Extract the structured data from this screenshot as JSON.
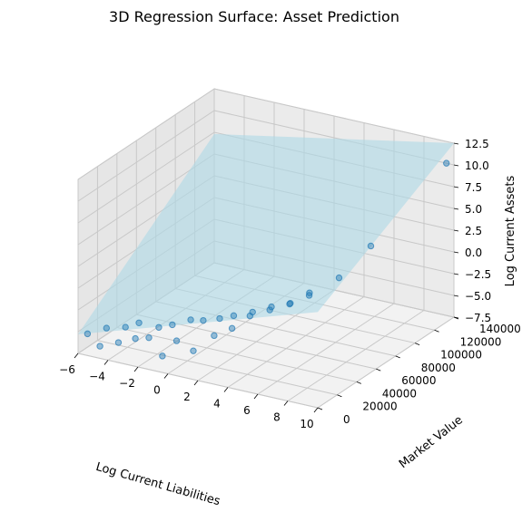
{
  "chart_data": {
    "type": "scatter",
    "title": "3D Regression Surface: Asset Prediction",
    "xlabel": "Log Current Liabilities",
    "ylabel": "Market Value",
    "zlabel": "Log Current Assets",
    "xlim": [
      -6,
      10
    ],
    "ylim": [
      0,
      140000
    ],
    "zlim": [
      -7.5,
      12.5
    ],
    "xticks": [
      "−6",
      "−4",
      "−2",
      "0",
      "2",
      "4",
      "6",
      "8",
      "10"
    ],
    "yticks": [
      "0",
      "20000",
      "40000",
      "60000",
      "80000",
      "100000",
      "120000",
      "140000"
    ],
    "zticks": [
      "−7.5",
      "−5.0",
      "−2.5",
      "0.0",
      "2.5",
      "5.0",
      "7.5",
      "10.0",
      "12.5"
    ],
    "grid": true,
    "surface": {
      "type": "plane",
      "description_equation": "z ≈ -2.0 + 0.55·x + 0.00009·y",
      "color": "#add8e6"
    },
    "points_color": "#1f77b4",
    "points": [
      {
        "x": -5.5,
        "y": 2000,
        "z": -5.2
      },
      {
        "x": -4.8,
        "y": 4000,
        "z": -6.5
      },
      {
        "x": -4.2,
        "y": 1500,
        "z": -4.0
      },
      {
        "x": -3.5,
        "y": 3000,
        "z": -5.5
      },
      {
        "x": -3.0,
        "y": 2500,
        "z": -3.5
      },
      {
        "x": -2.5,
        "y": 5000,
        "z": -4.8
      },
      {
        "x": -2.0,
        "y": 1000,
        "z": -2.5
      },
      {
        "x": -1.5,
        "y": 3500,
        "z": -4.2
      },
      {
        "x": -1.0,
        "y": 6000,
        "z": -3.0
      },
      {
        "x": -0.5,
        "y": 2000,
        "z": -5.8
      },
      {
        "x": 0.0,
        "y": 4500,
        "z": -2.2
      },
      {
        "x": 0.5,
        "y": 1200,
        "z": -3.6
      },
      {
        "x": 1.0,
        "y": 8000,
        "z": -1.5
      },
      {
        "x": 1.5,
        "y": 3000,
        "z": -4.5
      },
      {
        "x": 2.0,
        "y": 5500,
        "z": -1.0
      },
      {
        "x": 2.5,
        "y": 9000,
        "z": -2.8
      },
      {
        "x": 3.0,
        "y": 7000,
        "z": -0.5
      },
      {
        "x": 3.5,
        "y": 12000,
        "z": -1.8
      },
      {
        "x": 4.0,
        "y": 6000,
        "z": 0.3
      },
      {
        "x": 4.5,
        "y": 15000,
        "z": -0.2
      },
      {
        "x": 5.0,
        "y": 10000,
        "z": 0.8
      },
      {
        "x": 5.5,
        "y": 20000,
        "z": 0.5
      },
      {
        "x": 6.0,
        "y": 14000,
        "z": 1.5
      },
      {
        "x": 6.5,
        "y": 25000,
        "z": 1.2
      },
      {
        "x": 7.0,
        "y": 18000,
        "z": 2.0
      },
      {
        "x": 7.5,
        "y": 30000,
        "z": 2.5
      },
      {
        "x": 8.0,
        "y": 22000,
        "z": 3.0
      },
      {
        "x": 8.5,
        "y": 45000,
        "z": 3.5
      },
      {
        "x": 9.0,
        "y": 70000,
        "z": 5.5
      },
      {
        "x": 9.5,
        "y": 140000,
        "z": 10.0
      }
    ]
  }
}
